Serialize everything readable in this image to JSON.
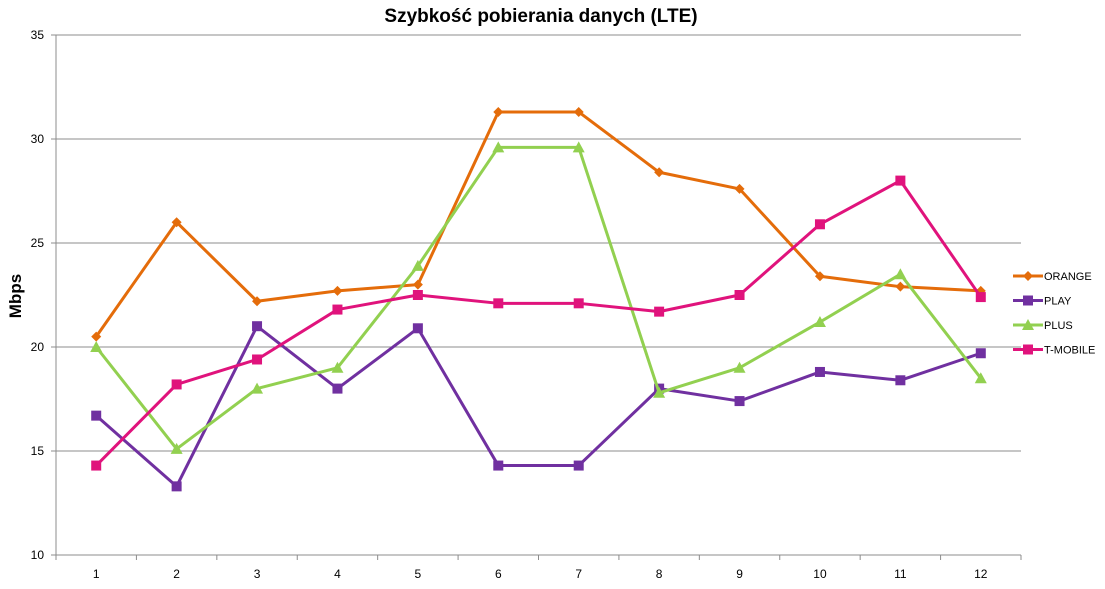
{
  "chart_data": {
    "type": "line",
    "title": "Szybkość pobierania danych (LTE)",
    "xlabel": "",
    "ylabel": "Mbps",
    "categories": [
      "1",
      "2",
      "3",
      "4",
      "5",
      "6",
      "7",
      "8",
      "9",
      "10",
      "11",
      "12"
    ],
    "ylim": [
      10,
      35
    ],
    "yticks": [
      "10",
      "15",
      "20",
      "25",
      "30",
      "35"
    ],
    "grid": true,
    "legend_position": "right",
    "series": [
      {
        "name": "ORANGE",
        "color": "#E46C0A",
        "marker": "diamond",
        "values": [
          20.5,
          26.0,
          22.2,
          22.7,
          23.0,
          31.3,
          31.3,
          28.4,
          27.6,
          23.4,
          22.9,
          22.7
        ]
      },
      {
        "name": "PLAY",
        "color": "#7030A0",
        "marker": "square",
        "values": [
          16.7,
          13.3,
          21.0,
          18.0,
          20.9,
          14.3,
          14.3,
          18.0,
          17.4,
          18.8,
          18.4,
          19.7
        ]
      },
      {
        "name": "PLUS",
        "color": "#92D050",
        "marker": "triangle",
        "values": [
          20.0,
          15.1,
          18.0,
          19.0,
          23.9,
          29.6,
          29.6,
          17.8,
          19.0,
          21.2,
          23.5,
          18.5
        ]
      },
      {
        "name": "T-MOBILE",
        "color": "#E0137C",
        "marker": "square",
        "values": [
          14.3,
          18.2,
          19.4,
          21.8,
          22.5,
          22.1,
          22.1,
          21.7,
          22.5,
          25.9,
          28.0,
          22.4
        ]
      }
    ]
  }
}
